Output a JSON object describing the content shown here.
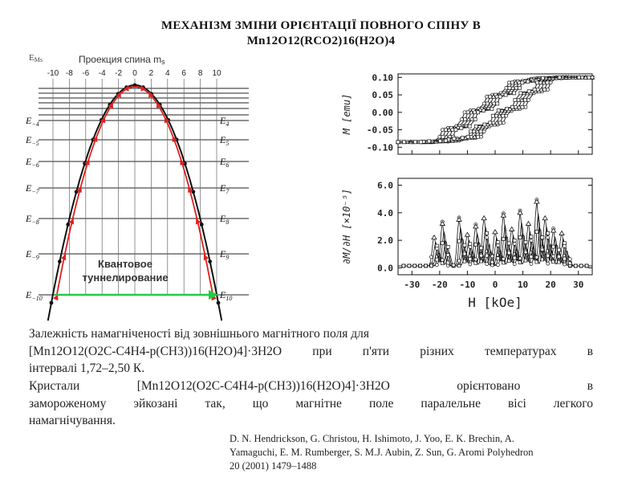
{
  "title": {
    "line1": "МЕХАНІЗМ ЗМІНИ ОРІЄНТАЦІЇ ПОВНОГО СПІНУ В",
    "line2": "Mn12O12(RCO2)16(H2O)4"
  },
  "energy_diagram": {
    "projection_label": "Проекция спина m",
    "projection_sub": "s",
    "ems_label": "E",
    "ems_sub": "Ms",
    "top_ticks": [
      "-10",
      "-8",
      "-6",
      "-4",
      "-2",
      "0",
      "2",
      "4",
      "6",
      "8",
      "10"
    ],
    "left_levels": [
      {
        "label": "E",
        "sub": "−4"
      },
      {
        "label": "E",
        "sub": "−5"
      },
      {
        "label": "E",
        "sub": "−6"
      },
      {
        "label": "E",
        "sub": "−7"
      },
      {
        "label": "E",
        "sub": "−8"
      },
      {
        "label": "E",
        "sub": "−9"
      },
      {
        "label": "E",
        "sub": "−10"
      }
    ],
    "right_levels": [
      {
        "label": "E",
        "sub": "4"
      },
      {
        "label": "E",
        "sub": "5"
      },
      {
        "label": "E",
        "sub": "6"
      },
      {
        "label": "E",
        "sub": "7"
      },
      {
        "label": "E",
        "sub": "8"
      },
      {
        "label": "E",
        "sub": "9"
      },
      {
        "label": "E",
        "sub": "10"
      }
    ],
    "tunneling_line1": "Квантовое",
    "tunneling_line2": "туннелирование",
    "colors": {
      "red": "#e02020",
      "green": "#22cc44",
      "black": "#111111"
    }
  },
  "chart_data": [
    {
      "type": "line",
      "title": "",
      "xlabel": "",
      "ylabel": "M [emu]",
      "ylim": [
        -0.12,
        0.11
      ],
      "xlim": [
        -35,
        35
      ],
      "yticks": [
        "0.10",
        "0.05",
        "0.00",
        "-0.05",
        "-0.10"
      ],
      "ytick_values": [
        0.1,
        0.05,
        0.0,
        -0.05,
        -0.1
      ],
      "series": [
        {
          "values_x": [
            -35,
            -28,
            -22,
            -20,
            -19,
            -17,
            -14,
            -12,
            -11,
            -9,
            -6,
            -4,
            -3,
            -1,
            2,
            4,
            5,
            7,
            10,
            12,
            13,
            15,
            19,
            21,
            22,
            24,
            28,
            35
          ],
          "values_y": [
            -0.085,
            -0.085,
            -0.083,
            -0.07,
            -0.05,
            -0.045,
            -0.04,
            -0.02,
            0.0,
            0.005,
            0.01,
            0.025,
            0.045,
            0.05,
            0.055,
            0.07,
            0.085,
            0.088,
            0.09,
            0.093,
            0.096,
            0.097,
            0.098,
            0.099,
            0.1,
            0.1,
            0.1,
            0.1
          ]
        },
        {
          "values_x": [
            35,
            28,
            22,
            20,
            19,
            17,
            14,
            12,
            11,
            9,
            6,
            4,
            3,
            1,
            -2,
            -4,
            -5,
            -7,
            -10,
            -12,
            -13,
            -15,
            -19,
            -21,
            -22,
            -24,
            -28,
            -35
          ],
          "values_y": [
            0.1,
            0.1,
            0.098,
            0.085,
            0.065,
            0.06,
            0.055,
            0.035,
            0.015,
            0.01,
            0.005,
            -0.01,
            -0.03,
            -0.035,
            -0.04,
            -0.055,
            -0.07,
            -0.073,
            -0.075,
            -0.078,
            -0.081,
            -0.082,
            -0.083,
            -0.084,
            -0.085,
            -0.085,
            -0.085,
            -0.085
          ]
        }
      ]
    },
    {
      "type": "line",
      "title": "",
      "xlabel": "H [kOe]",
      "ylabel": "∂M/∂H [×10⁻⁵]",
      "ylim": [
        -0.5,
        6.5
      ],
      "xlim": [
        -35,
        35
      ],
      "yticks": [
        "6.0",
        "4.0",
        "2.0",
        "0.0"
      ],
      "ytick_values": [
        6.0,
        4.0,
        2.0,
        0.0
      ],
      "xticks": [
        "-30",
        "-20",
        "-10",
        "0",
        "10",
        "20",
        "30"
      ],
      "xtick_values": [
        -30,
        -20,
        -10,
        0,
        10,
        20,
        30
      ],
      "series": [
        {
          "peaks_x": [
            -22,
            -19,
            -13,
            -10,
            -7,
            -4,
            0,
            3,
            6,
            9,
            12,
            15,
            18,
            21,
            24
          ],
          "peaks_y": [
            2.2,
            3.2,
            3.5,
            2.4,
            3.0,
            3.6,
            2.6,
            3.8,
            2.8,
            4.0,
            3.2,
            4.8,
            3.6,
            2.7,
            2.5
          ]
        }
      ]
    }
  ],
  "paragraph1": {
    "line1": "Залежність намагніченості від зовнішнього магнітного поля для",
    "line2": "[Mn12O12(O2C-C4H4-p(CH3))16(H2O)4]·3H2O  при п'яти різних температурах в",
    "line3": "інтервалі 1,72–2,50 К."
  },
  "paragraph2": {
    "line1": "Кристали      [Mn12O12(O2C-C4H4-p(CH3))16(H2O)4]·3H2O       орієнтовано       в",
    "line2": "замороженому  эйкозані  так,  що  магнітне  поле  паралельне  вісі  легкого",
    "line3": "намагнічування."
  },
  "citation": {
    "line1": "D. N. Hendrickson, G. Christou, H. Ishimoto, J. Yoo, E. K. Brechin, A.",
    "line2": "Yamaguchi, E. M. Rumberger, S. M.J. Aubin, Z. Sun, G. Aromi Polyhedron",
    "line3": "20 (2001) 1479–1488"
  }
}
